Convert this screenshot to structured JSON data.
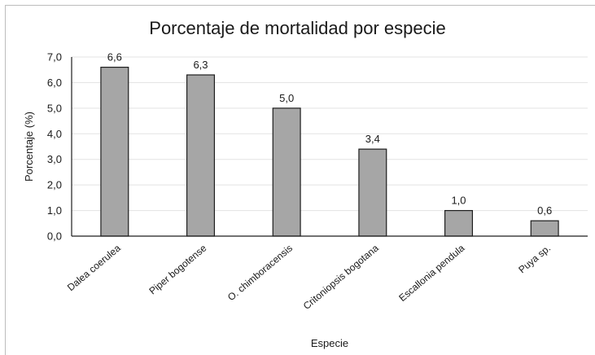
{
  "chart_data": {
    "type": "bar",
    "title": "Porcentaje de mortalidad por especie",
    "xlabel": "Especie",
    "ylabel": "Porcentaje (%)",
    "categories": [
      "Dalea coerulea",
      "Piper bogotense",
      "O. chimboracensis",
      "Critoniopsis bogotana",
      "Escallonia pendula",
      "Puya sp."
    ],
    "values": [
      6.6,
      6.3,
      5.0,
      3.4,
      1.0,
      0.6
    ],
    "data_labels": [
      "6,6",
      "6,3",
      "5,0",
      "3,4",
      "1,0",
      "0,6"
    ],
    "y_ticks": [
      0,
      1,
      2,
      3,
      4,
      5,
      6,
      7
    ],
    "y_tick_labels": [
      "0,0",
      "1,0",
      "2,0",
      "3,0",
      "4,0",
      "5,0",
      "6,0",
      "7,0"
    ],
    "ylim": [
      0,
      7
    ],
    "grid": true,
    "legend": "none",
    "colors": {
      "bar": "#a6a6a6",
      "bar_border": "#1e1e1e",
      "grid": "#e3e3e3"
    }
  }
}
